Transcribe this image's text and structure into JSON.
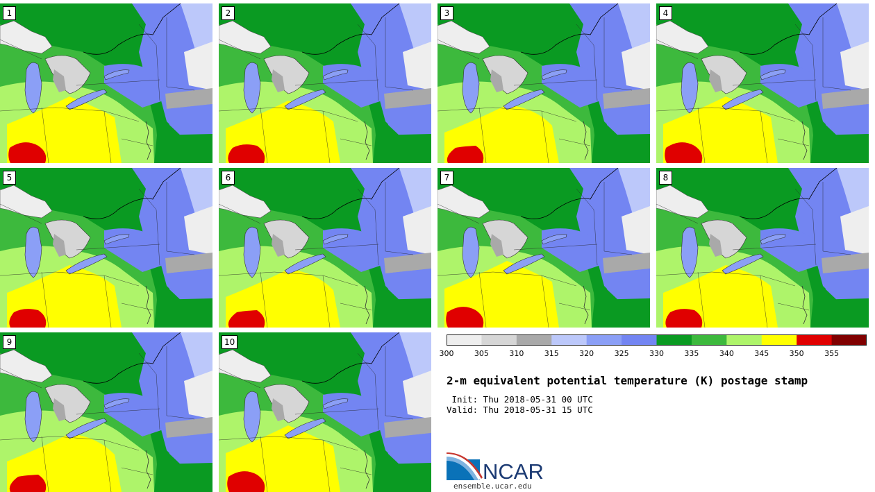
{
  "members": [
    "1",
    "2",
    "3",
    "4",
    "5",
    "6",
    "7",
    "8",
    "9",
    "10"
  ],
  "colorbar": {
    "colors": [
      "#eeeeee",
      "#d6d6d6",
      "#a9a9a9",
      "#bcc8fa",
      "#8b9ff6",
      "#7385f2",
      "#0a9a22",
      "#3db93d",
      "#aef46a",
      "#ffff00",
      "#e00000",
      "#800000"
    ],
    "ticks": [
      "300",
      "305",
      "310",
      "315",
      "320",
      "325",
      "330",
      "335",
      "340",
      "345",
      "350",
      "355"
    ],
    "units": "K"
  },
  "title": "2-m equivalent potential temperature (K) postage stamp",
  "init_line": " Init: Thu 2018-05-31 00 UTC",
  "valid_line": "Valid: Thu 2018-05-31 15 UTC",
  "logo": {
    "text": "NCAR",
    "url": "ensemble.ucar.edu"
  }
}
